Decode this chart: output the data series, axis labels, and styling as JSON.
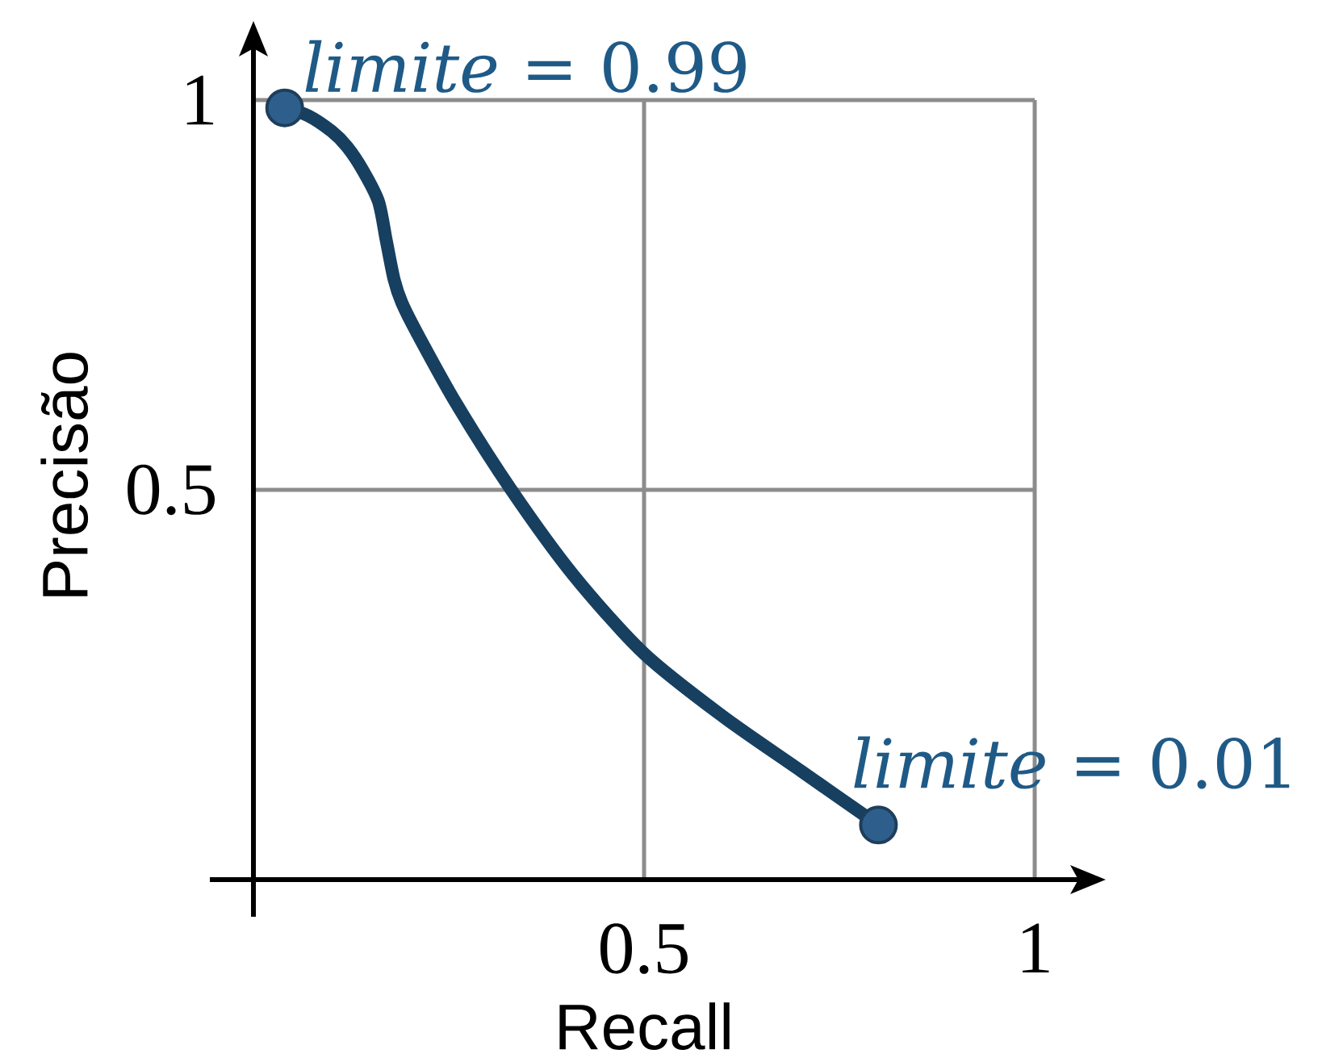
{
  "chart_data": {
    "type": "line",
    "xlabel": "Recall",
    "ylabel": "Precisão",
    "xlim": [
      0,
      1
    ],
    "ylim": [
      0,
      1
    ],
    "xticks": [
      0.5,
      1
    ],
    "yticks": [
      0.5,
      1
    ],
    "grid": true,
    "series": [
      {
        "color": "#173f5f",
        "marker": "none",
        "x": [
          0.04,
          0.07,
          0.1,
          0.12,
          0.14,
          0.16,
          0.17,
          0.18,
          0.19,
          0.21,
          0.26,
          0.33,
          0.41,
          0.5,
          0.6,
          0.7,
          0.8
        ],
        "values": [
          0.99,
          0.98,
          0.96,
          0.94,
          0.91,
          0.87,
          0.82,
          0.77,
          0.74,
          0.7,
          0.61,
          0.5,
          0.39,
          0.29,
          0.21,
          0.14,
          0.07
        ]
      },
      {
        "type": "scatter",
        "color": "#2e5f8c",
        "marker": "circle",
        "x": [
          0.04,
          0.8
        ],
        "values": [
          0.99,
          0.07
        ]
      }
    ],
    "annotations": [
      {
        "text": "*limite* = 0.99",
        "x": 0.04,
        "y": 0.99
      },
      {
        "text": "*limite* = 0.01",
        "x": 0.8,
        "y": 0.07
      }
    ]
  }
}
